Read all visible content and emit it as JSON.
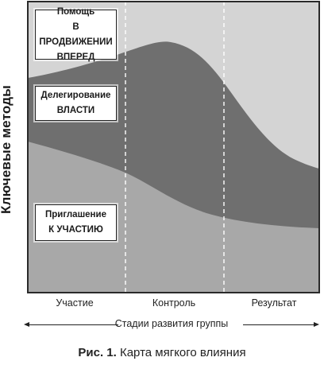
{
  "diagram": {
    "y_axis_title": "Ключевые методы",
    "method_labels": {
      "help": [
        "Помощь",
        "В ПРОДВИЖЕНИИ",
        "ВПЕРЕД"
      ],
      "delegation": [
        "Делегирование",
        "ВЛАСТИ"
      ],
      "invitation": [
        "Приглашение",
        "К УЧАСТИЮ"
      ]
    },
    "stages": [
      "Участие",
      "Контроль",
      "Результат"
    ],
    "x_axis_title": "Стадии развития группы",
    "caption_number": "Рис. 1.",
    "caption_text": " Карта мягкого влияния",
    "colors": {
      "frame": "#2a2a2a",
      "band_help": "#d4d4d4",
      "band_delegation": "#6f6f6f",
      "band_invitation": "#a8a8a8",
      "box_bg": "#ffffff"
    }
  }
}
